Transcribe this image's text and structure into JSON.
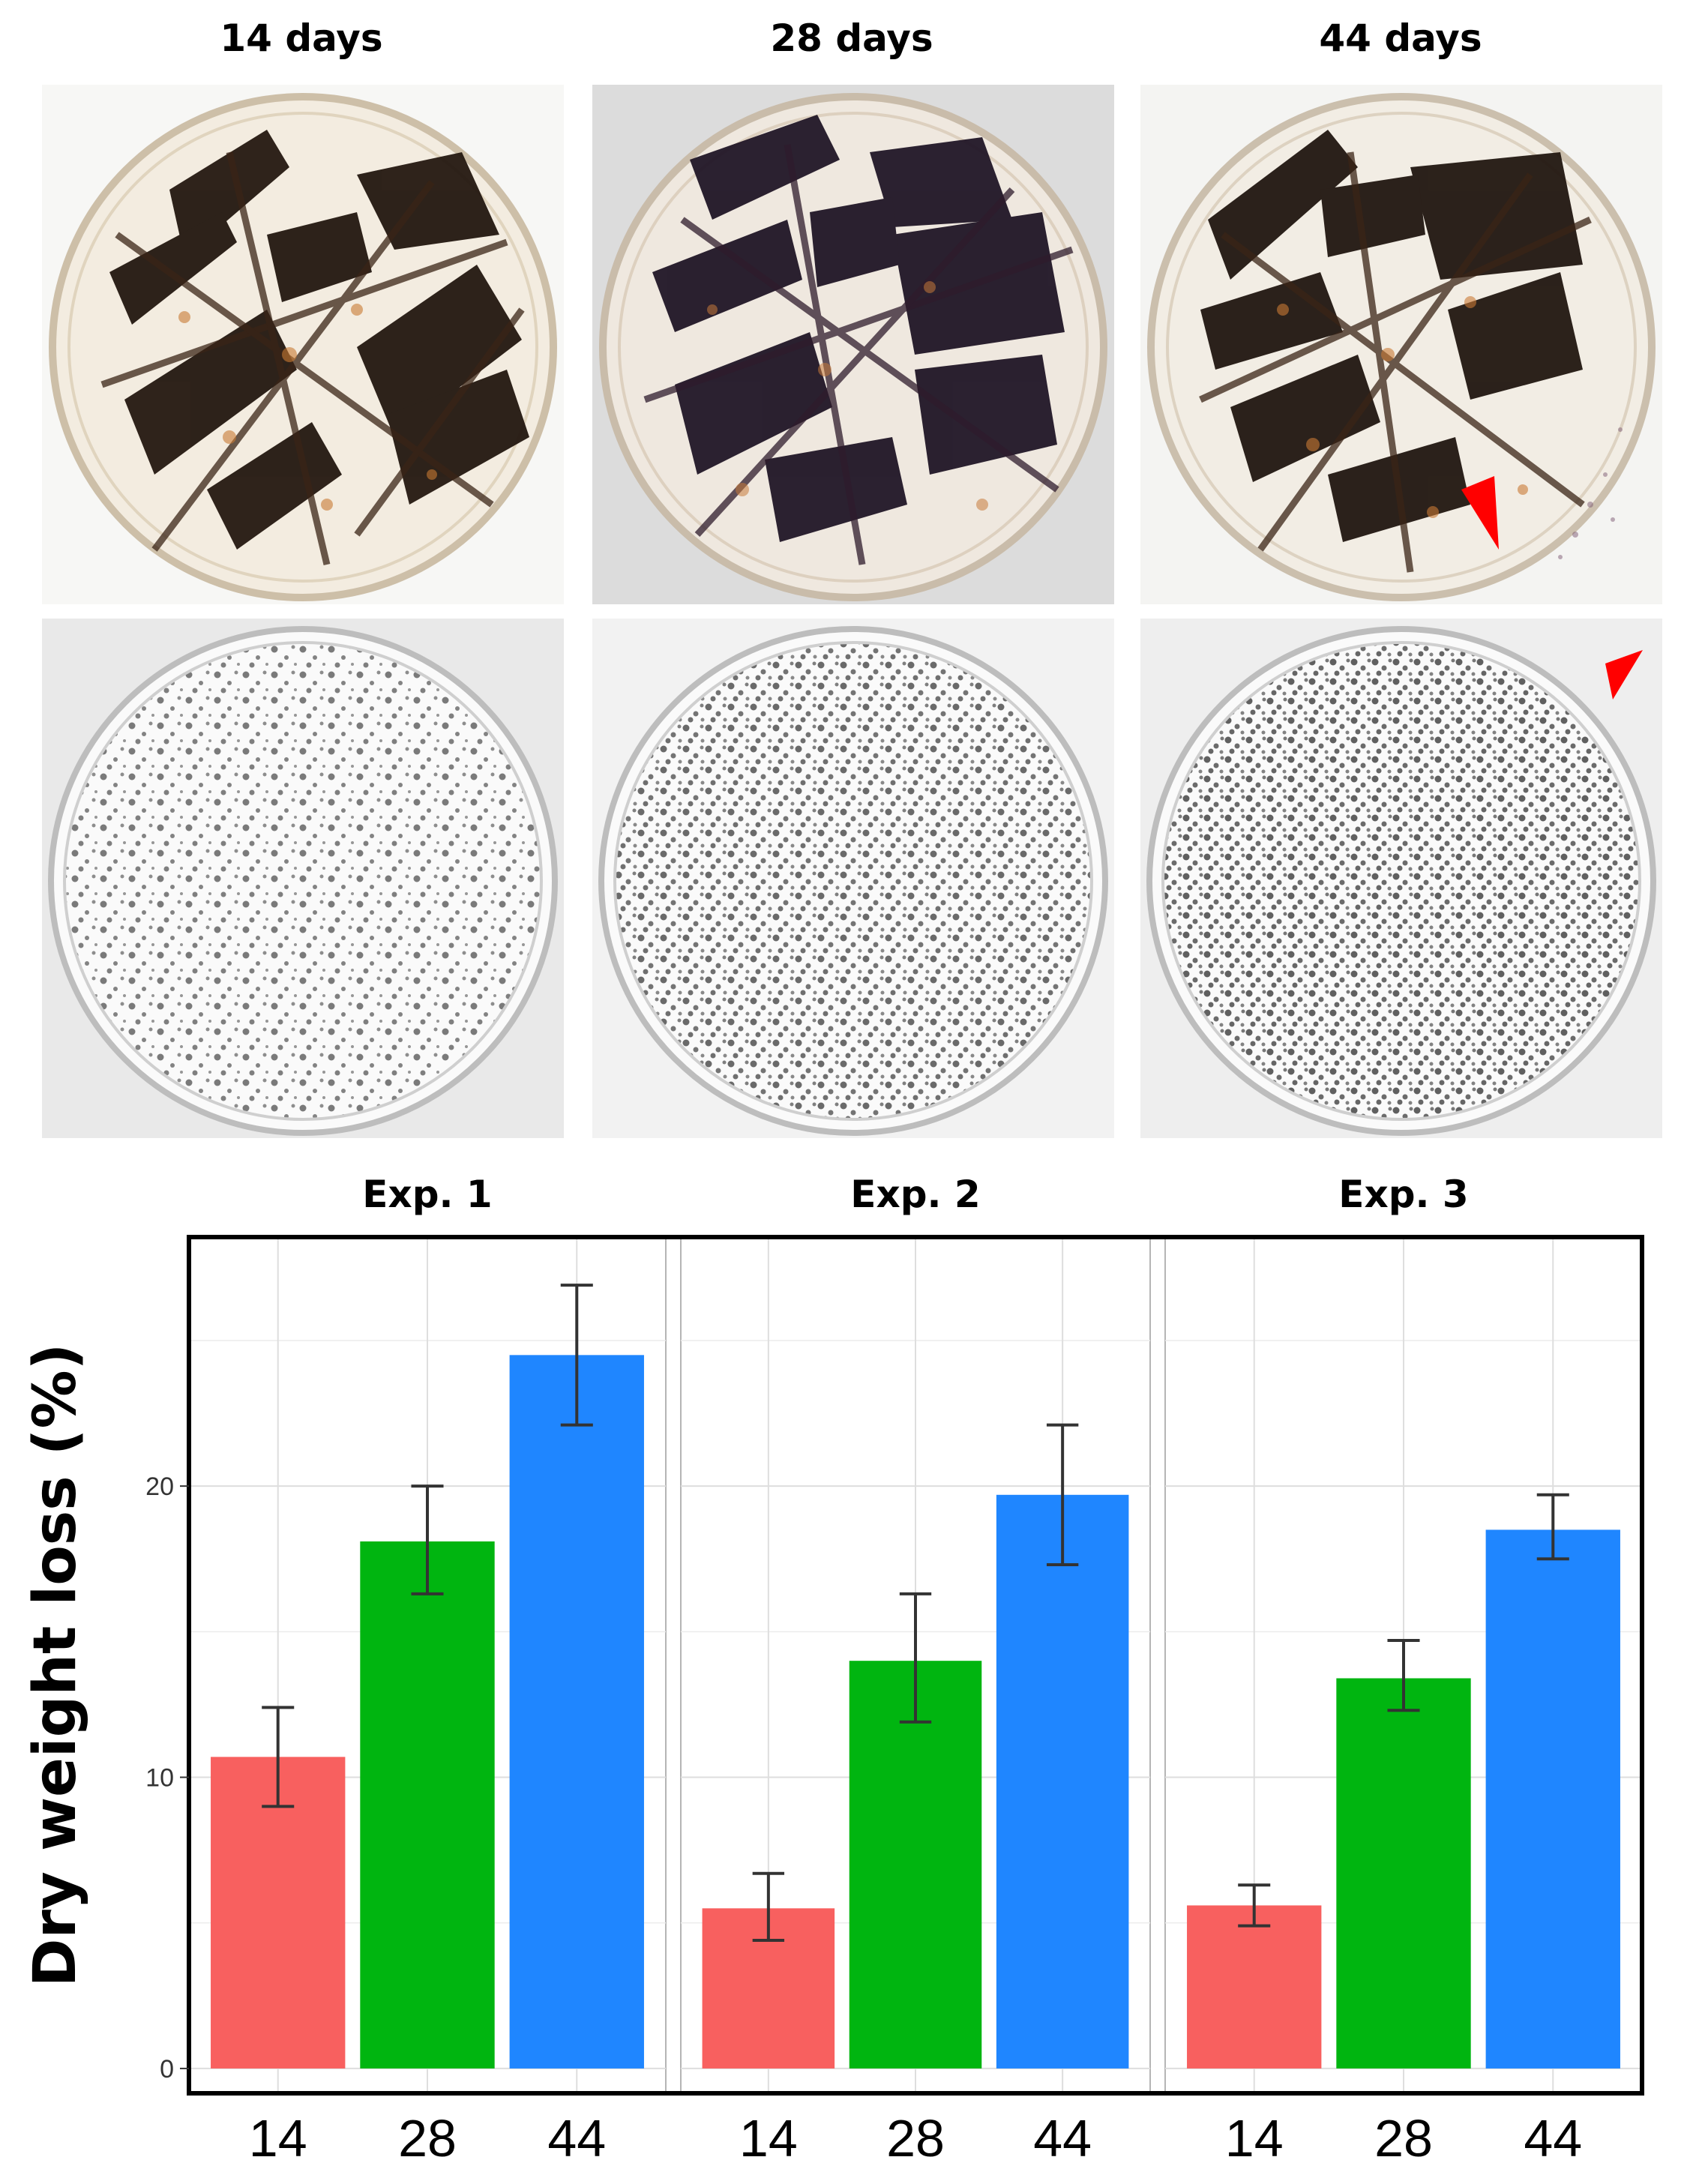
{
  "photo_panel": {
    "columns": [
      "14 days",
      "28 days",
      "44 days"
    ],
    "rows": [
      "straw-in-petri-dish",
      "granular-residue-in-petri-dish"
    ],
    "arrow_color": "#ff0000"
  },
  "chart_data": {
    "type": "bar",
    "ylabel": "Dry weight loss (%)",
    "ylim": [
      -0.8,
      28.5
    ],
    "yticks": [
      0,
      10,
      20
    ],
    "grid": true,
    "colors": {
      "14": "#f8605f",
      "28": "#00b510",
      "44": "#1f86ff"
    },
    "facets": [
      {
        "title": "Exp. 1",
        "categories": [
          "14",
          "28",
          "44"
        ],
        "values": [
          10.7,
          18.1,
          24.5
        ],
        "error_low": [
          9.0,
          16.3,
          22.1
        ],
        "error_high": [
          12.4,
          20.0,
          26.9
        ]
      },
      {
        "title": "Exp. 2",
        "categories": [
          "14",
          "28",
          "44"
        ],
        "values": [
          5.5,
          14.0,
          19.7
        ],
        "error_low": [
          4.4,
          11.9,
          17.3
        ],
        "error_high": [
          6.7,
          16.3,
          22.1
        ]
      },
      {
        "title": "Exp. 3",
        "categories": [
          "14",
          "28",
          "44"
        ],
        "values": [
          5.6,
          13.4,
          18.5
        ],
        "error_low": [
          4.9,
          12.3,
          17.5
        ],
        "error_high": [
          6.3,
          14.7,
          19.7
        ]
      }
    ]
  }
}
